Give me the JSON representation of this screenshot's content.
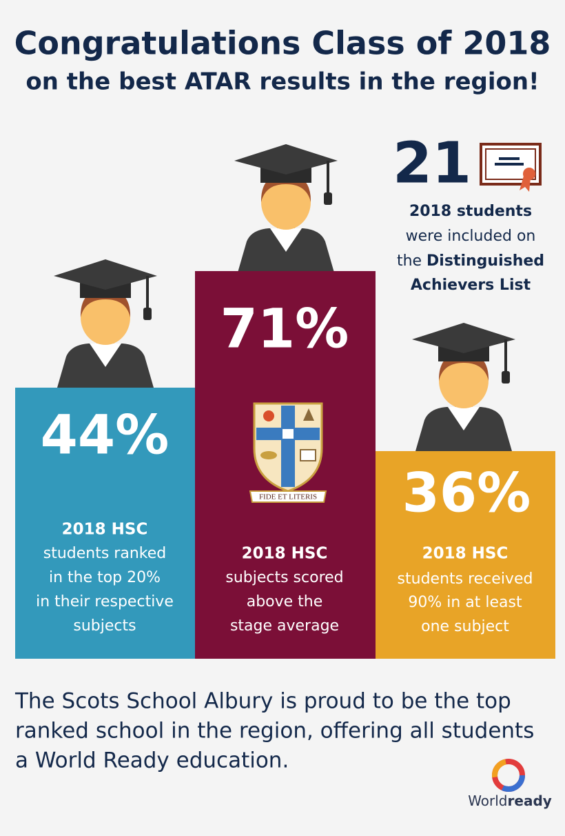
{
  "header": {
    "title_line1": "Congratulations Class of 2018",
    "title_line2": "on the best ATAR results in the region!"
  },
  "achievers": {
    "number": "21",
    "line1": "2018 students",
    "line2": "were included on",
    "line3_prefix": "the",
    "line3_bold": "Distinguished",
    "line4": "Achievers List"
  },
  "stats": [
    {
      "value": "44%",
      "lines": [
        "2018 HSC",
        "students ranked",
        "in the top 20%",
        "in their respective",
        "subjects"
      ]
    },
    {
      "value": "71%",
      "lines": [
        "2018 HSC",
        "subjects scored",
        "above the",
        "stage average"
      ]
    },
    {
      "value": "36%",
      "lines": [
        "2018 HSC",
        "students received",
        "90% in at least",
        "one subject"
      ]
    }
  ],
  "crest": {
    "motto": "FIDE ET LITERIS"
  },
  "footer": {
    "lines": [
      "The Scots School Albury is proud to be the top",
      "ranked school in the region, offering all students",
      "a World Ready education."
    ]
  },
  "logo": {
    "light": "World",
    "bold": "ready"
  }
}
